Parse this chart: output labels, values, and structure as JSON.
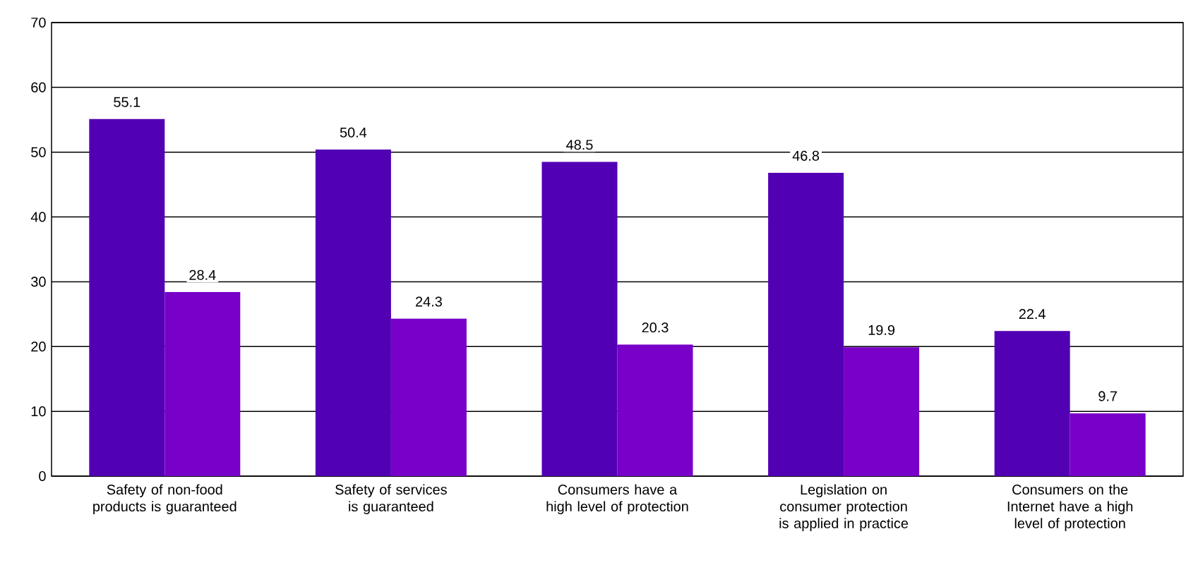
{
  "chart_data": {
    "type": "bar",
    "categories": [
      "Safety of non-food products is guaranteed",
      "Safety of services is guaranteed",
      "Consumers have a high level of protection",
      "Legislation on consumer protection is applied in practice",
      "Consumers on the Internet have a high level of protection"
    ],
    "series": [
      {
        "color": "#5200b4",
        "values": [
          55.1,
          50.4,
          48.5,
          46.8,
          22.4
        ]
      },
      {
        "color": "#7800c8",
        "values": [
          28.4,
          24.3,
          20.3,
          19.9,
          9.7
        ]
      }
    ],
    "ylim": [
      0,
      70
    ],
    "yticks": [
      0,
      10,
      20,
      30,
      40,
      50,
      60,
      70
    ],
    "grid": "y",
    "data_labels": true
  }
}
